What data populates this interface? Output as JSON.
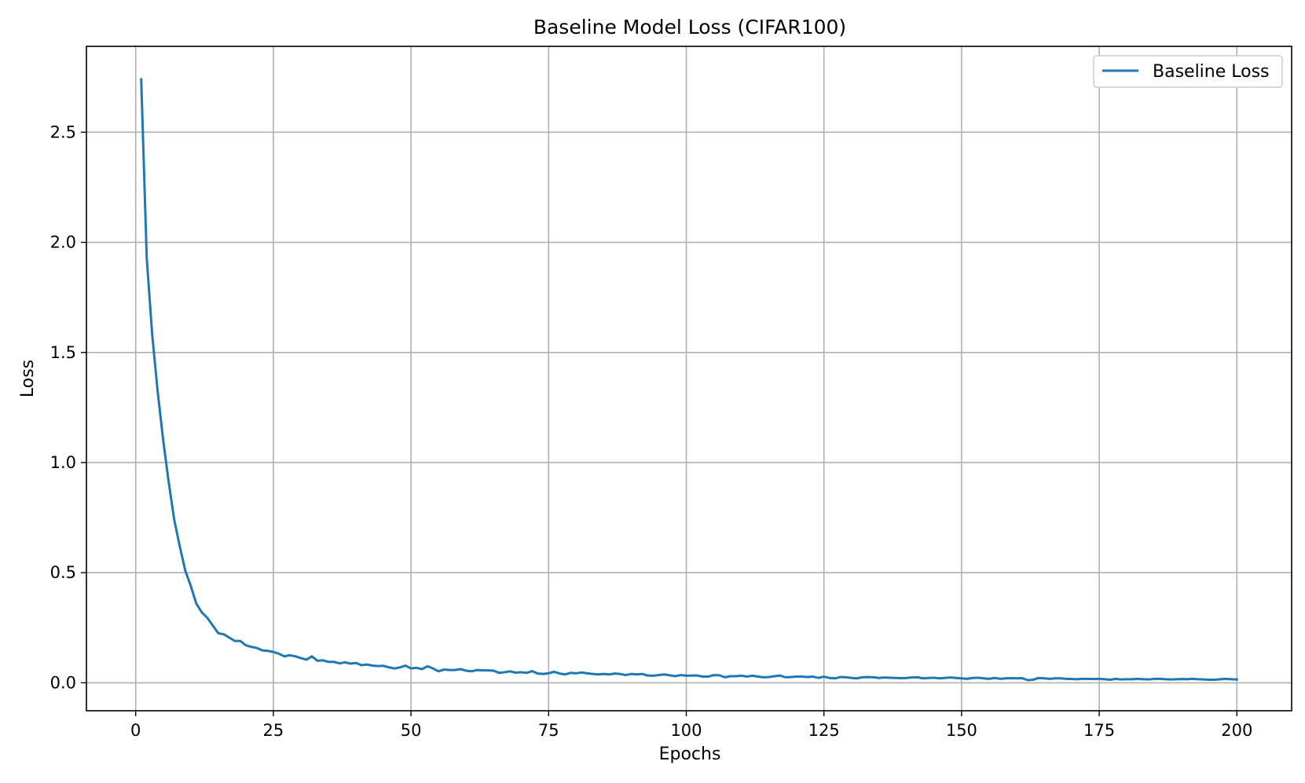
{
  "chart_data": {
    "type": "line",
    "title": "Baseline Model Loss (CIFAR100)",
    "xlabel": "Epochs",
    "ylabel": "Loss",
    "xlim": [
      -8.95,
      209.95
    ],
    "ylim": [
      -0.127,
      2.89
    ],
    "xticks": [
      0,
      25,
      50,
      75,
      100,
      125,
      150,
      175,
      200
    ],
    "yticks": [
      0.0,
      0.5,
      1.0,
      1.5,
      2.0,
      2.5
    ],
    "xtick_labels": [
      "0",
      "25",
      "50",
      "75",
      "100",
      "125",
      "150",
      "175",
      "200"
    ],
    "ytick_labels": [
      "0.0",
      "0.5",
      "1.0",
      "1.5",
      "2.0",
      "2.5"
    ],
    "grid": true,
    "legend_position": "top-right",
    "line_color": "#1f77b4",
    "series": [
      {
        "name": "Baseline Loss",
        "x": [
          1,
          2,
          3,
          4,
          5,
          6,
          7,
          8,
          9,
          10,
          11,
          12,
          13,
          14,
          15,
          16,
          17,
          18,
          19,
          20,
          21,
          22,
          23,
          24,
          25,
          26,
          27,
          28,
          29,
          30,
          31,
          32,
          33,
          34,
          35,
          36,
          37,
          38,
          39,
          40,
          41,
          42,
          43,
          44,
          45,
          46,
          47,
          48,
          49,
          50,
          51,
          52,
          53,
          54,
          55,
          56,
          57,
          58,
          59,
          60,
          61,
          62,
          63,
          64,
          65,
          66,
          67,
          68,
          69,
          70,
          71,
          72,
          73,
          74,
          75,
          76,
          77,
          78,
          79,
          80,
          81,
          82,
          83,
          84,
          85,
          86,
          87,
          88,
          89,
          90,
          91,
          92,
          93,
          94,
          95,
          96,
          97,
          98,
          99,
          100,
          101,
          102,
          103,
          104,
          105,
          106,
          107,
          108,
          109,
          110,
          111,
          112,
          113,
          114,
          115,
          116,
          117,
          118,
          119,
          120,
          121,
          122,
          123,
          124,
          125,
          126,
          127,
          128,
          129,
          130,
          131,
          132,
          133,
          134,
          135,
          136,
          137,
          138,
          139,
          140,
          141,
          142,
          143,
          144,
          145,
          146,
          147,
          148,
          149,
          150,
          151,
          152,
          153,
          154,
          155,
          156,
          157,
          158,
          159,
          160,
          161,
          162,
          163,
          164,
          165,
          166,
          167,
          168,
          169,
          170,
          171,
          172,
          173,
          174,
          175,
          176,
          177,
          178,
          179,
          180,
          181,
          182,
          183,
          184,
          185,
          186,
          187,
          188,
          189,
          190,
          191,
          192,
          193,
          194,
          195,
          196,
          197,
          198,
          199,
          200
        ],
        "values": [
          2.74,
          1.93,
          1.58,
          1.32,
          1.1,
          0.91,
          0.74,
          0.62,
          0.51,
          0.44,
          0.36,
          0.32,
          0.295,
          0.26,
          0.225,
          0.22,
          0.205,
          0.19,
          0.19,
          0.17,
          0.163,
          0.158,
          0.147,
          0.145,
          0.14,
          0.132,
          0.12,
          0.125,
          0.12,
          0.112,
          0.105,
          0.12,
          0.1,
          0.102,
          0.095,
          0.095,
          0.088,
          0.093,
          0.087,
          0.09,
          0.08,
          0.083,
          0.078,
          0.076,
          0.077,
          0.07,
          0.065,
          0.07,
          0.078,
          0.065,
          0.068,
          0.062,
          0.075,
          0.065,
          0.052,
          0.06,
          0.058,
          0.058,
          0.062,
          0.055,
          0.052,
          0.058,
          0.056,
          0.056,
          0.055,
          0.045,
          0.048,
          0.052,
          0.046,
          0.048,
          0.045,
          0.053,
          0.042,
          0.04,
          0.043,
          0.05,
          0.042,
          0.038,
          0.045,
          0.043,
          0.047,
          0.043,
          0.04,
          0.038,
          0.04,
          0.038,
          0.042,
          0.04,
          0.035,
          0.04,
          0.038,
          0.04,
          0.033,
          0.032,
          0.035,
          0.038,
          0.034,
          0.03,
          0.035,
          0.032,
          0.033,
          0.033,
          0.028,
          0.028,
          0.035,
          0.034,
          0.025,
          0.03,
          0.03,
          0.032,
          0.028,
          0.032,
          0.028,
          0.025,
          0.026,
          0.03,
          0.033,
          0.025,
          0.026,
          0.028,
          0.028,
          0.026,
          0.028,
          0.022,
          0.028,
          0.022,
          0.02,
          0.026,
          0.025,
          0.022,
          0.02,
          0.025,
          0.026,
          0.025,
          0.022,
          0.024,
          0.023,
          0.022,
          0.021,
          0.022,
          0.024,
          0.025,
          0.02,
          0.022,
          0.023,
          0.02,
          0.022,
          0.024,
          0.022,
          0.02,
          0.018,
          0.022,
          0.023,
          0.02,
          0.018,
          0.022,
          0.018,
          0.02,
          0.021,
          0.02,
          0.021,
          0.012,
          0.014,
          0.022,
          0.02,
          0.018,
          0.02,
          0.02,
          0.018,
          0.017,
          0.016,
          0.018,
          0.018,
          0.017,
          0.018,
          0.016,
          0.014,
          0.018,
          0.015,
          0.016,
          0.016,
          0.018,
          0.016,
          0.015,
          0.018,
          0.018,
          0.016,
          0.015,
          0.016,
          0.017,
          0.016,
          0.018,
          0.016,
          0.015,
          0.014,
          0.014,
          0.016,
          0.018,
          0.016,
          0.015
        ]
      }
    ]
  }
}
